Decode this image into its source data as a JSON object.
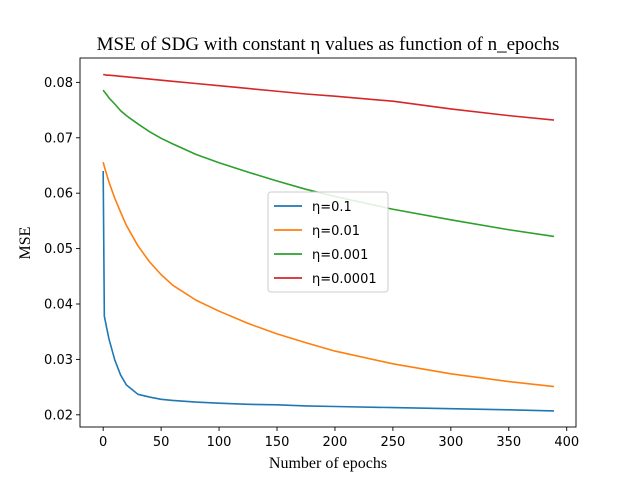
{
  "chart_data": {
    "type": "line",
    "title": "MSE of SDG with constant η values as function of n_epochs",
    "xlabel": "Number of epochs",
    "ylabel": "MSE",
    "xlim": [
      -20,
      408
    ],
    "ylim": [
      0.0178,
      0.0844
    ],
    "xticks": [
      0,
      50,
      100,
      150,
      200,
      250,
      300,
      350,
      400
    ],
    "yticks": [
      0.02,
      0.03,
      0.04,
      0.05,
      0.06,
      0.07,
      0.08
    ],
    "grid": false,
    "legend_position": "center",
    "x": [
      0,
      1,
      3,
      5,
      10,
      15,
      20,
      30,
      40,
      50,
      60,
      80,
      100,
      125,
      150,
      175,
      200,
      250,
      300,
      350,
      389
    ],
    "series": [
      {
        "name": "η=0.1",
        "color": "#1f77b4",
        "values": [
          0.064,
          0.0378,
          0.0357,
          0.0337,
          0.0299,
          0.0272,
          0.0254,
          0.0237,
          0.0232,
          0.0228,
          0.0226,
          0.0223,
          0.0221,
          0.0219,
          0.0218,
          0.0216,
          0.0215,
          0.0213,
          0.0211,
          0.0209,
          0.0207
        ]
      },
      {
        "name": "η=0.01",
        "color": "#ff7f0e",
        "values": [
          0.0656,
          0.0648,
          0.0634,
          0.062,
          0.0591,
          0.0566,
          0.0542,
          0.0505,
          0.0476,
          0.0453,
          0.0434,
          0.0407,
          0.0387,
          0.0365,
          0.0346,
          0.033,
          0.0315,
          0.0292,
          0.0274,
          0.026,
          0.0251
        ]
      },
      {
        "name": "η=0.001",
        "color": "#2ca02c",
        "values": [
          0.0786,
          0.0783,
          0.0778,
          0.0772,
          0.0761,
          0.0749,
          0.074,
          0.0725,
          0.0711,
          0.0699,
          0.0689,
          0.067,
          0.0655,
          0.0638,
          0.0622,
          0.0607,
          0.0594,
          0.0571,
          0.0552,
          0.0534,
          0.0522
        ]
      },
      {
        "name": "η=0.0001",
        "color": "#d62728",
        "values": [
          0.0814,
          0.0814,
          0.0813,
          0.0813,
          0.0812,
          0.0811,
          0.081,
          0.0808,
          0.0806,
          0.0804,
          0.0802,
          0.0798,
          0.0794,
          0.0789,
          0.0784,
          0.0779,
          0.0775,
          0.0766,
          0.0752,
          0.074,
          0.0732
        ]
      }
    ]
  }
}
